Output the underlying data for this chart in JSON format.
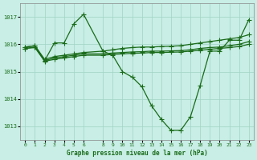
{
  "line1_x": [
    0,
    1,
    2,
    3,
    4,
    5,
    6,
    8,
    9,
    10,
    11,
    12,
    13,
    14,
    15,
    16,
    17,
    18,
    19,
    20,
    21,
    22,
    23
  ],
  "line1_y": [
    1015.9,
    1015.95,
    1015.4,
    1016.05,
    1016.05,
    1016.75,
    1017.1,
    1015.75,
    1015.6,
    1015.0,
    1014.8,
    1014.45,
    1013.75,
    1013.25,
    1012.85,
    1012.85,
    1013.35,
    1014.5,
    1015.75,
    1015.75,
    1016.15,
    1016.15,
    1016.9
  ],
  "line2_x": [
    0,
    1,
    2,
    3,
    4,
    5,
    6,
    8,
    9,
    10,
    11,
    12,
    13,
    14,
    15,
    16,
    17,
    18,
    19,
    20,
    21,
    22,
    23
  ],
  "line2_y": [
    1015.9,
    1015.95,
    1015.45,
    1015.55,
    1015.6,
    1015.65,
    1015.7,
    1015.75,
    1015.8,
    1015.85,
    1015.88,
    1015.9,
    1015.9,
    1015.92,
    1015.93,
    1015.95,
    1016.0,
    1016.05,
    1016.1,
    1016.15,
    1016.2,
    1016.25,
    1016.35
  ],
  "line3_x": [
    0,
    1,
    2,
    3,
    4,
    5,
    6,
    8,
    9,
    10,
    11,
    12,
    13,
    14,
    15,
    16,
    17,
    18,
    19,
    20,
    21,
    22,
    23
  ],
  "line3_y": [
    1015.85,
    1015.9,
    1015.4,
    1015.5,
    1015.55,
    1015.6,
    1015.65,
    1015.65,
    1015.68,
    1015.7,
    1015.72,
    1015.73,
    1015.75,
    1015.75,
    1015.76,
    1015.77,
    1015.8,
    1015.85,
    1015.88,
    1015.9,
    1015.95,
    1016.0,
    1016.1
  ],
  "line4_x": [
    0,
    1,
    2,
    3,
    4,
    5,
    6,
    8,
    9,
    10,
    11,
    12,
    13,
    14,
    15,
    16,
    17,
    18,
    19,
    20,
    21,
    22,
    23
  ],
  "line4_y": [
    1015.85,
    1015.88,
    1015.38,
    1015.45,
    1015.5,
    1015.55,
    1015.6,
    1015.6,
    1015.63,
    1015.65,
    1015.67,
    1015.68,
    1015.7,
    1015.7,
    1015.71,
    1015.72,
    1015.75,
    1015.78,
    1015.82,
    1015.85,
    1015.88,
    1015.92,
    1016.0
  ],
  "ylim": [
    1012.5,
    1017.5
  ],
  "xlim": [
    -0.5,
    23.5
  ],
  "yticks": [
    1013,
    1014,
    1015,
    1016,
    1017
  ],
  "xticks": [
    0,
    1,
    2,
    3,
    4,
    5,
    6,
    8,
    9,
    10,
    11,
    12,
    13,
    14,
    15,
    16,
    17,
    18,
    19,
    20,
    21,
    22,
    23
  ],
  "line_color": "#1a6b1a",
  "bg_color": "#c8eee5",
  "grid_color": "#a0d4c4",
  "xlabel": "Graphe pression niveau de la mer (hPa)"
}
